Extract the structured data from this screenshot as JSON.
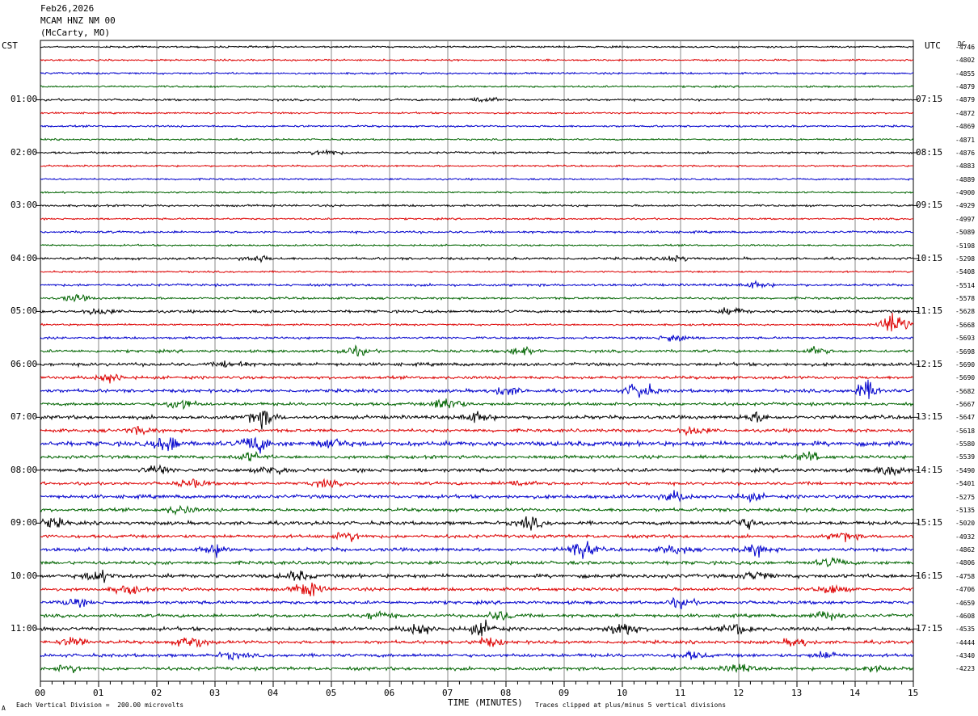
{
  "header": {
    "date": "Feb26,2026",
    "station": "MCAM HNZ NM 00",
    "location": "(McCarty, MO)"
  },
  "timezones": {
    "left": "CST",
    "right": "UTC",
    "dc_label": "DC"
  },
  "footer": {
    "scale_note": "Each Vertical Division =  200.00 microvolts",
    "x_title": "TIME (MINUTES)",
    "clip_note": "Traces clipped at plus/minus 5 vertical divisions",
    "corner_mark": "A"
  },
  "chart_data": {
    "type": "line",
    "title": "MCAM HNZ NM 00",
    "xlabel": "TIME (MINUTES)",
    "xlim": [
      0,
      15
    ],
    "x_ticks": [
      "00",
      "01",
      "02",
      "03",
      "04",
      "05",
      "06",
      "07",
      "08",
      "09",
      "10",
      "11",
      "12",
      "13",
      "14",
      "15"
    ],
    "trace_colors": [
      "#000000",
      "#dd0000",
      "#0000cc",
      "#006400"
    ],
    "left_hour_labels": [
      "01:00",
      "02:00",
      "03:00",
      "04:00",
      "05:00",
      "06:00",
      "07:00",
      "08:00",
      "09:00",
      "10:00",
      "11:00"
    ],
    "right_hour_labels": [
      "07:15",
      "08:15",
      "09:15",
      "10:15",
      "11:15",
      "12:15",
      "13:15",
      "14:15",
      "15:15",
      "16:15",
      "17:15"
    ],
    "dc_offsets": [
      "-4746",
      "-4802",
      "-4855",
      "-4879",
      "-4879",
      "-4872",
      "-4869",
      "-4871",
      "-4876",
      "-4883",
      "-4889",
      "-4900",
      "-4929",
      "-4997",
      "-5089",
      "-5198",
      "-5298",
      "-5408",
      "-5514",
      "-5578",
      "-5628",
      "-5668",
      "-5693",
      "-5698",
      "-5690",
      "-5690",
      "-5682",
      "-5667",
      "-5647",
      "-5618",
      "-5580",
      "-5539",
      "-5490",
      "-5401",
      "-5275",
      "-5135",
      "-5020",
      "-4932",
      "-4862",
      "-4806",
      "-4758",
      "-4706",
      "-4659",
      "-4608",
      "-4535",
      "-4444",
      "-4340",
      "-4223"
    ],
    "trace_count": 48,
    "minutes_per_trace": 15,
    "activity_level": [
      0.15,
      0.15,
      0.2,
      0.2,
      0.25,
      0.15,
      0.2,
      0.15,
      0.25,
      0.15,
      0.15,
      0.15,
      0.25,
      0.15,
      0.3,
      0.15,
      0.35,
      0.15,
      0.35,
      0.3,
      0.45,
      0.2,
      0.3,
      0.45,
      0.6,
      0.5,
      0.6,
      0.55,
      0.7,
      0.6,
      1.0,
      0.6,
      0.7,
      0.55,
      0.7,
      0.6,
      0.7,
      0.6,
      0.7,
      0.65,
      0.75,
      0.6,
      0.6,
      0.6,
      0.75,
      0.6,
      0.6,
      0.6
    ],
    "events": [
      {
        "trace": 4,
        "minute": 7.6,
        "amp": 3
      },
      {
        "trace": 8,
        "minute": 4.9,
        "amp": 3
      },
      {
        "trace": 16,
        "minute": 3.7,
        "amp": 3
      },
      {
        "trace": 16,
        "minute": 10.9,
        "amp": 3
      },
      {
        "trace": 18,
        "minute": 12.3,
        "amp": 3
      },
      {
        "trace": 19,
        "minute": 0.6,
        "amp": 3
      },
      {
        "trace": 20,
        "minute": 1.0,
        "amp": 3
      },
      {
        "trace": 20,
        "minute": 11.9,
        "amp": 3
      },
      {
        "trace": 21,
        "minute": 14.7,
        "amp": 12
      },
      {
        "trace": 22,
        "minute": 10.9,
        "amp": 4
      },
      {
        "trace": 23,
        "minute": 5.4,
        "amp": 4
      },
      {
        "trace": 23,
        "minute": 8.3,
        "amp": 4
      },
      {
        "trace": 23,
        "minute": 13.3,
        "amp": 3
      },
      {
        "trace": 24,
        "minute": 3.3,
        "amp": 3
      },
      {
        "trace": 25,
        "minute": 1.2,
        "amp": 4
      },
      {
        "trace": 26,
        "minute": 8.0,
        "amp": 4
      },
      {
        "trace": 26,
        "minute": 10.3,
        "amp": 8
      },
      {
        "trace": 26,
        "minute": 14.2,
        "amp": 8
      },
      {
        "trace": 27,
        "minute": 2.4,
        "amp": 5
      },
      {
        "trace": 27,
        "minute": 7.0,
        "amp": 7
      },
      {
        "trace": 28,
        "minute": 3.8,
        "amp": 8
      },
      {
        "trace": 28,
        "minute": 7.5,
        "amp": 5
      },
      {
        "trace": 28,
        "minute": 12.3,
        "amp": 4
      },
      {
        "trace": 29,
        "minute": 1.7,
        "amp": 3
      },
      {
        "trace": 29,
        "minute": 11.2,
        "amp": 4
      },
      {
        "trace": 30,
        "minute": 2.2,
        "amp": 7
      },
      {
        "trace": 30,
        "minute": 3.7,
        "amp": 8
      },
      {
        "trace": 30,
        "minute": 5.0,
        "amp": 5
      },
      {
        "trace": 31,
        "minute": 3.6,
        "amp": 4
      },
      {
        "trace": 31,
        "minute": 13.2,
        "amp": 4
      },
      {
        "trace": 32,
        "minute": 2.0,
        "amp": 4
      },
      {
        "trace": 32,
        "minute": 4.0,
        "amp": 4
      },
      {
        "trace": 32,
        "minute": 14.6,
        "amp": 5
      },
      {
        "trace": 33,
        "minute": 2.6,
        "amp": 4
      },
      {
        "trace": 33,
        "minute": 4.9,
        "amp": 3
      },
      {
        "trace": 33,
        "minute": 8.2,
        "amp": 3
      },
      {
        "trace": 34,
        "minute": 10.9,
        "amp": 4
      },
      {
        "trace": 34,
        "minute": 12.2,
        "amp": 3
      },
      {
        "trace": 35,
        "minute": 2.4,
        "amp": 4
      },
      {
        "trace": 36,
        "minute": 0.2,
        "amp": 4
      },
      {
        "trace": 36,
        "minute": 8.4,
        "amp": 5
      },
      {
        "trace": 36,
        "minute": 12.1,
        "amp": 5
      },
      {
        "trace": 37,
        "minute": 5.3,
        "amp": 4
      },
      {
        "trace": 37,
        "minute": 13.8,
        "amp": 4
      },
      {
        "trace": 38,
        "minute": 3.0,
        "amp": 5
      },
      {
        "trace": 38,
        "minute": 9.3,
        "amp": 8
      },
      {
        "trace": 38,
        "minute": 12.3,
        "amp": 5
      },
      {
        "trace": 38,
        "minute": 10.9,
        "amp": 4
      },
      {
        "trace": 39,
        "minute": 13.6,
        "amp": 4
      },
      {
        "trace": 40,
        "minute": 1.0,
        "amp": 5
      },
      {
        "trace": 40,
        "minute": 4.4,
        "amp": 4
      },
      {
        "trace": 40,
        "minute": 12.3,
        "amp": 4
      },
      {
        "trace": 41,
        "minute": 1.5,
        "amp": 4
      },
      {
        "trace": 41,
        "minute": 4.6,
        "amp": 7
      },
      {
        "trace": 41,
        "minute": 13.6,
        "amp": 4
      },
      {
        "trace": 42,
        "minute": 0.6,
        "amp": 3
      },
      {
        "trace": 42,
        "minute": 11.0,
        "amp": 4
      },
      {
        "trace": 43,
        "minute": 5.8,
        "amp": 4
      },
      {
        "trace": 43,
        "minute": 7.9,
        "amp": 4
      },
      {
        "trace": 43,
        "minute": 13.5,
        "amp": 4
      },
      {
        "trace": 44,
        "minute": 6.5,
        "amp": 5
      },
      {
        "trace": 44,
        "minute": 7.6,
        "amp": 6
      },
      {
        "trace": 44,
        "minute": 10.0,
        "amp": 7
      },
      {
        "trace": 44,
        "minute": 12.0,
        "amp": 5
      },
      {
        "trace": 45,
        "minute": 0.6,
        "amp": 4
      },
      {
        "trace": 45,
        "minute": 2.6,
        "amp": 6
      },
      {
        "trace": 45,
        "minute": 7.7,
        "amp": 4
      },
      {
        "trace": 45,
        "minute": 13.0,
        "amp": 4
      },
      {
        "trace": 46,
        "minute": 3.3,
        "amp": 3
      },
      {
        "trace": 46,
        "minute": 11.2,
        "amp": 3
      },
      {
        "trace": 46,
        "minute": 13.5,
        "amp": 3
      },
      {
        "trace": 47,
        "minute": 0.5,
        "amp": 3
      },
      {
        "trace": 47,
        "minute": 12.0,
        "amp": 4
      },
      {
        "trace": 47,
        "minute": 14.3,
        "amp": 3
      }
    ]
  }
}
